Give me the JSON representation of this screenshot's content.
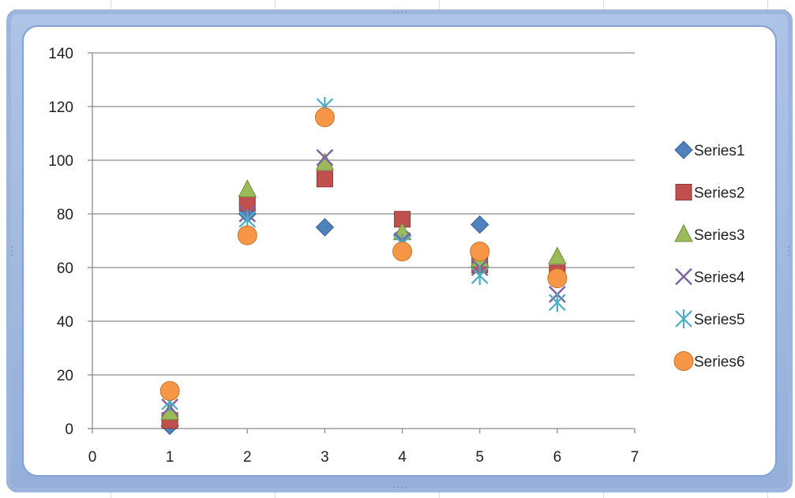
{
  "chart_data": {
    "type": "scatter",
    "xlim": [
      0,
      7
    ],
    "ylim": [
      0,
      140
    ],
    "x_ticks": [
      0,
      1,
      2,
      3,
      4,
      5,
      6,
      7
    ],
    "y_ticks": [
      0,
      20,
      40,
      60,
      80,
      100,
      120,
      140
    ],
    "grid": "horizontal",
    "legend_position": "right",
    "series": [
      {
        "name": "Series1",
        "marker": "diamond",
        "color": "#4f81bd",
        "points": [
          [
            1,
            1
          ],
          [
            2,
            80
          ],
          [
            3,
            75
          ],
          [
            4,
            72
          ],
          [
            5,
            76
          ],
          [
            6,
            57
          ]
        ]
      },
      {
        "name": "Series2",
        "marker": "square",
        "color": "#c0504d",
        "points": [
          [
            1,
            3
          ],
          [
            2,
            84
          ],
          [
            3,
            93
          ],
          [
            4,
            78
          ],
          [
            5,
            61
          ],
          [
            6,
            58
          ]
        ]
      },
      {
        "name": "Series3",
        "marker": "triangle",
        "color": "#9bbb59",
        "points": [
          [
            1,
            6
          ],
          [
            2,
            89
          ],
          [
            3,
            99
          ],
          [
            4,
            73
          ],
          [
            5,
            63
          ],
          [
            6,
            64
          ]
        ]
      },
      {
        "name": "Series4",
        "marker": "x",
        "color": "#8064a2",
        "points": [
          [
            1,
            8
          ],
          [
            2,
            80
          ],
          [
            3,
            101
          ],
          [
            4,
            70
          ],
          [
            5,
            60
          ],
          [
            6,
            50
          ]
        ]
      },
      {
        "name": "Series5",
        "marker": "star",
        "color": "#4bacc6",
        "points": [
          [
            1,
            10
          ],
          [
            2,
            78
          ],
          [
            3,
            120
          ],
          [
            4,
            69
          ],
          [
            5,
            57
          ],
          [
            6,
            47
          ]
        ]
      },
      {
        "name": "Series6",
        "marker": "circle",
        "color": "#f79646",
        "points": [
          [
            1,
            14
          ],
          [
            2,
            72
          ],
          [
            3,
            116
          ],
          [
            4,
            66
          ],
          [
            5,
            66
          ],
          [
            6,
            56
          ]
        ]
      }
    ]
  }
}
